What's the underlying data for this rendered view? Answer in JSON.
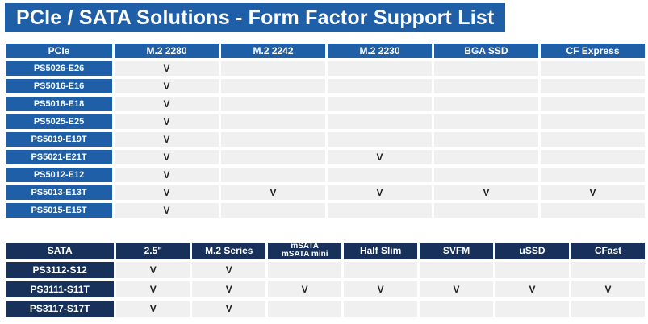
{
  "title": "PCIe / SATA Solutions - Form Factor Support List",
  "pcie": {
    "headers": [
      "PCIe",
      "M.2 2280",
      "M.2 2242",
      "M.2 2230",
      "BGA SSD",
      "CF Express"
    ],
    "rows": [
      {
        "name": "PS5026-E26",
        "cells": [
          "V",
          "",
          "",
          "",
          ""
        ]
      },
      {
        "name": "PS5016-E16",
        "cells": [
          "V",
          "",
          "",
          "",
          ""
        ]
      },
      {
        "name": "PS5018-E18",
        "cells": [
          "V",
          "",
          "",
          "",
          ""
        ]
      },
      {
        "name": "PS5025-E25",
        "cells": [
          "V",
          "",
          "",
          "",
          ""
        ]
      },
      {
        "name": "PS5019-E19T",
        "cells": [
          "V",
          "",
          "",
          "",
          ""
        ]
      },
      {
        "name": "PS5021-E21T",
        "cells": [
          "V",
          "",
          "V",
          "",
          ""
        ]
      },
      {
        "name": "PS5012-E12",
        "cells": [
          "V",
          "",
          "",
          "",
          ""
        ]
      },
      {
        "name": "PS5013-E13T",
        "cells": [
          "V",
          "V",
          "V",
          "V",
          "V"
        ]
      },
      {
        "name": "PS5015-E15T",
        "cells": [
          "V",
          "",
          "",
          "",
          ""
        ]
      }
    ]
  },
  "sata": {
    "headers": [
      "SATA",
      "2.5\"",
      "M.2 Series",
      "mSATA",
      "Half Slim",
      "SVFM",
      "uSSD",
      "CFast"
    ],
    "header_sub": {
      "msata": "mSATA mini"
    },
    "rows": [
      {
        "name": "PS3112-S12",
        "cells": [
          "V",
          "V",
          "",
          "",
          "",
          "",
          ""
        ]
      },
      {
        "name": "PS3111-S11T",
        "cells": [
          "V",
          "V",
          "V",
          "V",
          "V",
          "V",
          "V"
        ]
      },
      {
        "name": "PS3117-S17T",
        "cells": [
          "V",
          "V",
          "",
          "",
          "",
          "",
          ""
        ]
      }
    ]
  },
  "colors": {
    "pcie_header": "#1e5fa8",
    "sata_header": "#17315a",
    "cell_bg": "#f0f0f0"
  }
}
